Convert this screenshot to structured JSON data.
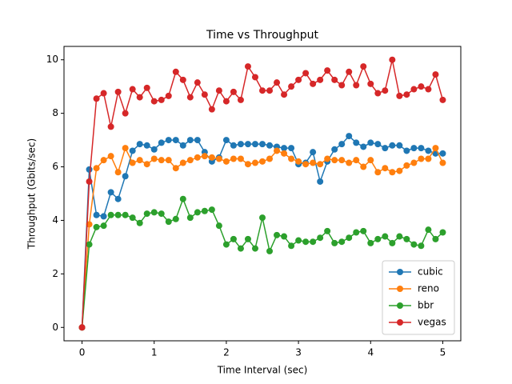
{
  "chart_data": {
    "type": "line",
    "title": "Time vs Throughput",
    "x_label": "Time Interval (sec)",
    "y_label": "Throughput (Gbits/sec)",
    "x": [
      0,
      0.1,
      0.2,
      0.3,
      0.4,
      0.5,
      0.6,
      0.7,
      0.8,
      0.9,
      1.0,
      1.1,
      1.2,
      1.3,
      1.4,
      1.5,
      1.6,
      1.7,
      1.8,
      1.9,
      2.0,
      2.1,
      2.2,
      2.3,
      2.4,
      2.5,
      2.6,
      2.7,
      2.8,
      2.9,
      3.0,
      3.1,
      3.2,
      3.3,
      3.4,
      3.5,
      3.6,
      3.7,
      3.8,
      3.9,
      4.0,
      4.1,
      4.2,
      4.3,
      4.4,
      4.5,
      4.6,
      4.7,
      4.8,
      4.9,
      5.0
    ],
    "series": [
      {
        "name": "cubic",
        "color": "#1f77b4",
        "values": [
          0,
          5.9,
          4.2,
          4.15,
          5.05,
          4.8,
          5.65,
          6.6,
          6.85,
          6.8,
          6.65,
          6.9,
          7.0,
          7.0,
          6.8,
          7.0,
          7.0,
          6.55,
          6.2,
          6.35,
          7.0,
          6.8,
          6.85,
          6.85,
          6.85,
          6.85,
          6.8,
          6.75,
          6.7,
          6.7,
          6.1,
          6.15,
          6.55,
          5.45,
          6.2,
          6.65,
          6.85,
          7.15,
          6.9,
          6.75,
          6.9,
          6.85,
          6.7,
          6.8,
          6.8,
          6.6,
          6.7,
          6.7,
          6.6,
          6.5,
          6.5
        ]
      },
      {
        "name": "reno",
        "color": "#ff7f0e",
        "values": [
          0,
          3.85,
          5.95,
          6.25,
          6.4,
          5.8,
          6.7,
          6.15,
          6.25,
          6.1,
          6.3,
          6.25,
          6.25,
          5.95,
          6.15,
          6.25,
          6.35,
          6.4,
          6.35,
          6.3,
          6.2,
          6.3,
          6.3,
          6.1,
          6.15,
          6.2,
          6.3,
          6.6,
          6.5,
          6.3,
          6.2,
          6.1,
          6.15,
          6.1,
          6.3,
          6.25,
          6.25,
          6.15,
          6.25,
          6.0,
          6.25,
          5.8,
          5.95,
          5.8,
          5.85,
          6.05,
          6.15,
          6.3,
          6.3,
          6.7,
          6.15
        ]
      },
      {
        "name": "bbr",
        "color": "#2ca02c",
        "values": [
          0,
          3.1,
          3.75,
          3.8,
          4.2,
          4.2,
          4.2,
          4.1,
          3.9,
          4.25,
          4.3,
          4.25,
          3.95,
          4.05,
          4.8,
          4.1,
          4.3,
          4.35,
          4.4,
          3.8,
          3.1,
          3.3,
          2.95,
          3.3,
          2.95,
          4.1,
          2.85,
          3.45,
          3.4,
          3.05,
          3.25,
          3.2,
          3.2,
          3.35,
          3.6,
          3.15,
          3.2,
          3.35,
          3.55,
          3.6,
          3.15,
          3.3,
          3.4,
          3.15,
          3.4,
          3.3,
          3.1,
          3.05,
          3.65,
          3.3,
          3.55
        ]
      },
      {
        "name": "vegas",
        "color": "#d62728",
        "values": [
          0,
          5.45,
          8.55,
          8.75,
          7.5,
          8.8,
          8.0,
          8.9,
          8.6,
          8.95,
          8.45,
          8.5,
          8.65,
          9.55,
          9.25,
          8.6,
          9.15,
          8.7,
          8.15,
          8.85,
          8.45,
          8.8,
          8.5,
          9.75,
          9.35,
          8.85,
          8.85,
          9.15,
          8.7,
          9.0,
          9.25,
          9.5,
          9.1,
          9.25,
          9.6,
          9.25,
          9.05,
          9.55,
          9.05,
          9.75,
          9.1,
          8.75,
          8.85,
          10.0,
          8.65,
          8.7,
          8.9,
          9.0,
          8.9,
          9.45,
          8.5
        ]
      }
    ],
    "xlim": [
      -0.25,
      5.25
    ],
    "ylim": [
      -0.5,
      10.5
    ],
    "xticks": [
      0,
      1,
      2,
      3,
      4,
      5
    ],
    "yticks": [
      0,
      2,
      4,
      6,
      8,
      10
    ],
    "legend": "lower right"
  }
}
